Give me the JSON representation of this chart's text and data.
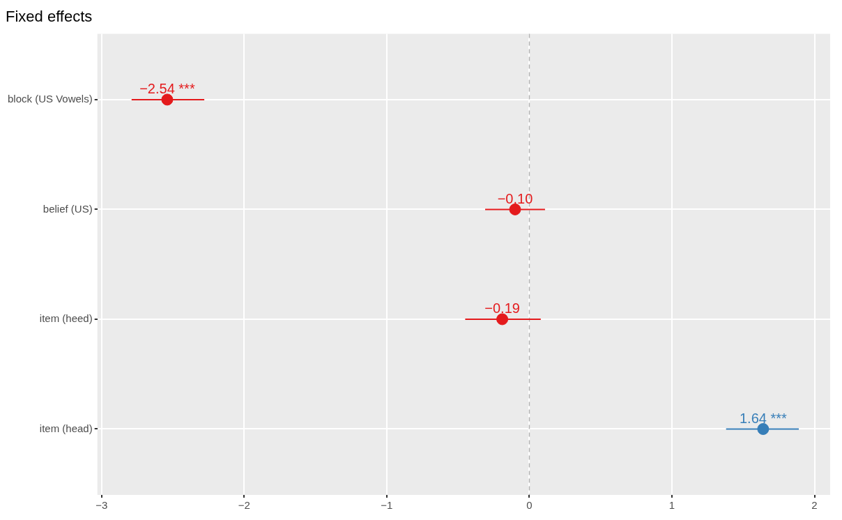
{
  "chart_data": {
    "type": "scatter",
    "orientation": "horizontal",
    "title": "Fixed effects",
    "categories": [
      "block (US Vowels)",
      "belief (US)",
      "item (heed)",
      "item (head)"
    ],
    "values": [
      -2.54,
      -0.1,
      -0.19,
      1.64
    ],
    "errors": [
      [
        -2.79,
        -2.28
      ],
      [
        -0.31,
        0.11
      ],
      [
        -0.45,
        0.08
      ],
      [
        1.38,
        1.89
      ]
    ],
    "colors": [
      "#e41a1c",
      "#e41a1c",
      "#e41a1c",
      "#377eb8"
    ],
    "value_labels": [
      "−2.54 ***",
      "−0.10",
      "−0.19",
      "1.64 ***"
    ],
    "xlim": [
      -3.03,
      2.11
    ],
    "xticks": [
      {
        "value": -3,
        "label": "−3"
      },
      {
        "value": -2,
        "label": "−2"
      },
      {
        "value": -1,
        "label": "−1"
      },
      0,
      1,
      2
    ],
    "ref_lines": [
      {
        "axis": "x",
        "value": 0,
        "color": "#b3b3b3",
        "line_style": "dashed"
      }
    ],
    "grid": true,
    "marker": "circle"
  }
}
